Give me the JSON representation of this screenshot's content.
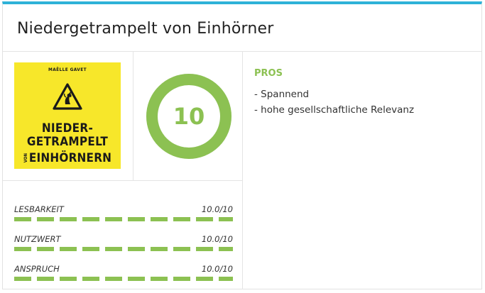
{
  "review": {
    "title": "Niedergetrampelt von Einhörner",
    "score": "10",
    "score_fraction": 1.0,
    "accent_color": "#8cc152",
    "top_border_color": "#2eb2d8"
  },
  "cover": {
    "author": "MAËLLE GAVET",
    "title_line1": "NIEDER-",
    "title_line2": "GETRAMPELT",
    "title_small": "VON",
    "title_line3": "EINHÖRNERN",
    "background_color": "#f7e72a",
    "icon": "unicorn-warning-sign-icon"
  },
  "criteria": [
    {
      "label": "LESBARKEIT",
      "value": "10.0/10",
      "fraction": 1.0
    },
    {
      "label": "NUTZWERT",
      "value": "10.0/10",
      "fraction": 1.0
    },
    {
      "label": "ANSPRUCH",
      "value": "10.0/10",
      "fraction": 1.0
    }
  ],
  "pros": {
    "heading": "PROS",
    "items": [
      "- Spannend",
      "- hohe gesellschaftliche Relevanz"
    ]
  }
}
